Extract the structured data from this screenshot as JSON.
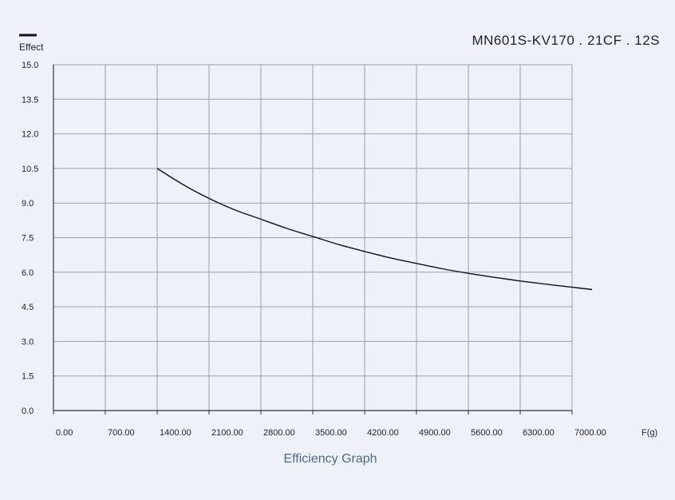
{
  "chart_data": {
    "type": "line",
    "title": "MN601S-KV170 . 21CF . 12S",
    "caption": "Efficiency Graph",
    "ylabel": "Effect",
    "xlabel": "F(g)",
    "legend_placement": "top-left",
    "grid": true,
    "xlim": [
      0,
      7000
    ],
    "ylim": [
      0,
      15
    ],
    "x_ticks": [
      "0.00",
      "700.00",
      "1400.00",
      "2100.00",
      "2800.00",
      "3500.00",
      "4200.00",
      "4900.00",
      "5600.00",
      "6300.00",
      "7000.00"
    ],
    "y_ticks": [
      "15.0",
      "13.5",
      "12.0",
      "10.5",
      "9.0",
      "7.5",
      "6.0",
      "4.5",
      "3.0",
      "1.5",
      "0.0"
    ],
    "series": [
      {
        "color": "#111111",
        "x": [
          1400,
          1750,
          2100,
          2450,
          2800,
          3150,
          3500,
          3850,
          4200,
          4550,
          4900,
          5250,
          5600,
          5950,
          6300,
          6650,
          7000,
          7270
        ],
        "y": [
          10.5,
          9.8,
          9.2,
          8.7,
          8.3,
          7.9,
          7.55,
          7.2,
          6.9,
          6.62,
          6.38,
          6.15,
          5.95,
          5.78,
          5.62,
          5.48,
          5.35,
          5.25
        ]
      }
    ]
  }
}
